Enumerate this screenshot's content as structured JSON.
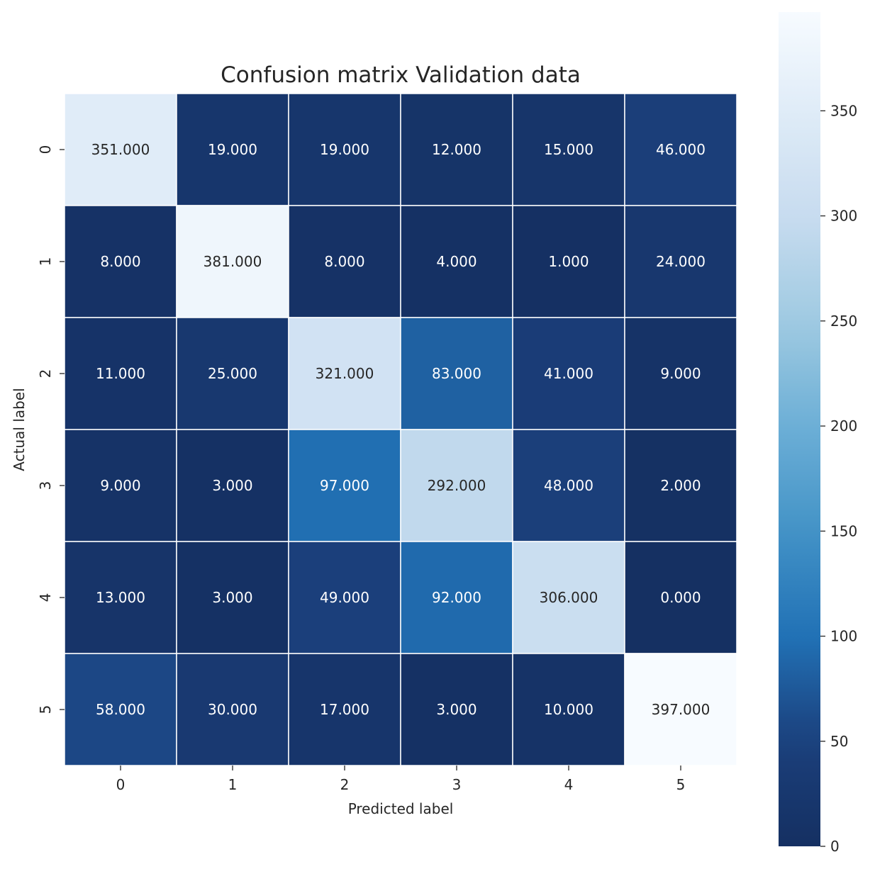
{
  "chart_data": {
    "type": "heatmap",
    "title": "Confusion matrix Validation data",
    "xlabel": "Predicted label",
    "ylabel": "Actual label",
    "x_tick_labels": [
      "0",
      "1",
      "2",
      "3",
      "4",
      "5"
    ],
    "y_tick_labels": [
      "0",
      "1",
      "2",
      "3",
      "4",
      "5"
    ],
    "values": [
      [
        351,
        19,
        19,
        12,
        15,
        46
      ],
      [
        8,
        381,
        8,
        4,
        1,
        24
      ],
      [
        11,
        25,
        321,
        83,
        41,
        9
      ],
      [
        9,
        3,
        97,
        292,
        48,
        2
      ],
      [
        13,
        3,
        49,
        92,
        306,
        0
      ],
      [
        58,
        30,
        17,
        3,
        10,
        397
      ]
    ],
    "cell_labels": [
      [
        "351.000",
        "19.000",
        "19.000",
        "12.000",
        "15.000",
        "46.000"
      ],
      [
        "8.000",
        "381.000",
        "8.000",
        "4.000",
        "1.000",
        "24.000"
      ],
      [
        "11.000",
        "25.000",
        "321.000",
        "83.000",
        "41.000",
        "9.000"
      ],
      [
        "9.000",
        "3.000",
        "97.000",
        "292.000",
        "48.000",
        "2.000"
      ],
      [
        "13.000",
        "3.000",
        "49.000",
        "92.000",
        "306.000",
        "0.000"
      ],
      [
        "58.000",
        "30.000",
        "17.000",
        "3.000",
        "10.000",
        "397.000"
      ]
    ],
    "colormap": "Blues_r",
    "value_range": [
      0,
      397
    ],
    "colorbar": {
      "ticks": [
        0,
        50,
        100,
        150,
        200,
        250,
        300,
        350
      ],
      "tick_labels": [
        "0",
        "50",
        "100",
        "150",
        "200",
        "250",
        "300",
        "350"
      ]
    },
    "grid": true,
    "legend": "colorbar-right"
  }
}
